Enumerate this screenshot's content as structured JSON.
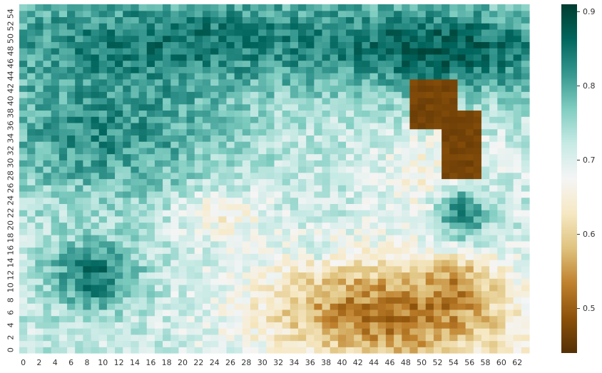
{
  "chart_data": {
    "type": "heatmap",
    "title": "",
    "xlabel": "",
    "ylabel": "",
    "n_cols": 64,
    "n_rows": 56,
    "x_ticks": [
      "0",
      "2",
      "4",
      "6",
      "8",
      "10",
      "12",
      "14",
      "16",
      "18",
      "20",
      "22",
      "24",
      "26",
      "28",
      "30",
      "32",
      "34",
      "36",
      "38",
      "40",
      "42",
      "44",
      "46",
      "48",
      "50",
      "52",
      "54",
      "56",
      "58",
      "60",
      "62"
    ],
    "y_ticks": [
      "0",
      "2",
      "4",
      "6",
      "8",
      "10",
      "12",
      "14",
      "16",
      "18",
      "20",
      "22",
      "24",
      "26",
      "28",
      "30",
      "32",
      "34",
      "36",
      "38",
      "40",
      "42",
      "44",
      "46",
      "48",
      "50",
      "52",
      "54"
    ],
    "y_axis_origin": "bottom",
    "colorbar": {
      "min": 0.44,
      "max": 0.91,
      "ticks": [
        "0.5",
        "0.6",
        "0.7",
        "0.8",
        "0.9"
      ],
      "tick_values": [
        0.5,
        0.6,
        0.7,
        0.8,
        0.9
      ],
      "colormap": "BrBG"
    },
    "colormap_stops": [
      "#543005",
      "#8c510a",
      "#bf812d",
      "#dfc27d",
      "#f6e8c3",
      "#f5f5f5",
      "#c7eae5",
      "#80cdc1",
      "#35978f",
      "#01665e",
      "#003c30"
    ],
    "regions_note_values": {
      "top_band_rows_40_55": 0.84,
      "upper_left_rows_26_40": 0.82,
      "center": 0.72,
      "lower_right_brown": 0.58,
      "dark_blob_cols_49_58_rows_30_43": 0.46,
      "teal_column_cols_53_57_rows_18_27": 0.86,
      "lower_left_teal_cols_6_13_rows_8_17": 0.85
    }
  }
}
